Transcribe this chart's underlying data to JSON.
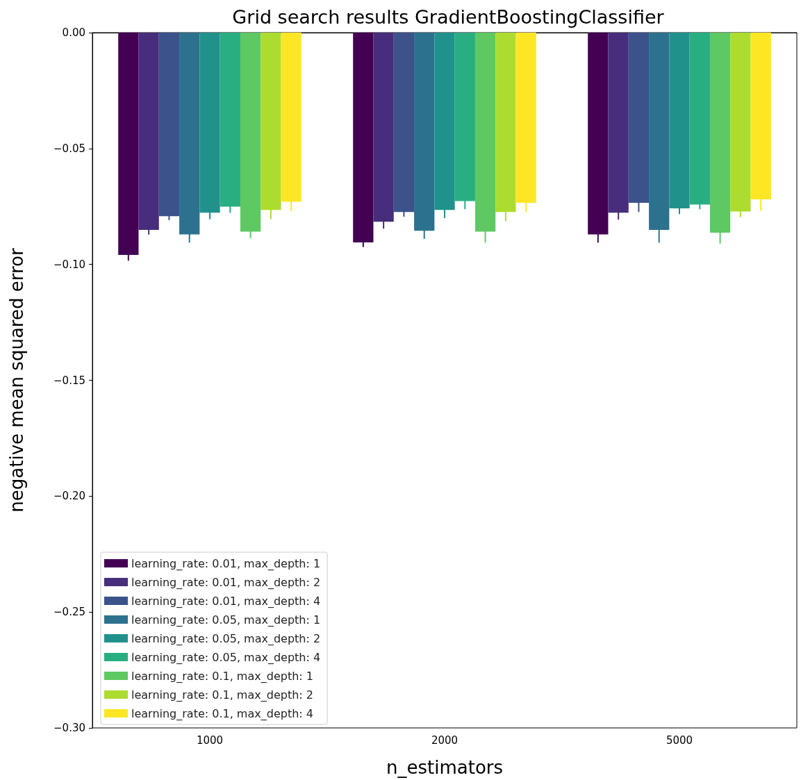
{
  "chart_data": {
    "type": "bar",
    "title": "Grid search results GradientBoostingClassifier",
    "xlabel": "n_estimators",
    "ylabel": "negative mean squared error",
    "categories": [
      "1000",
      "2000",
      "5000"
    ],
    "series": [
      {
        "name": "learning_rate: 0.01, max_depth: 1",
        "color": "#440154",
        "values": [
          -0.0959,
          -0.0905,
          -0.0871
        ],
        "errors": [
          0.0025,
          0.002,
          0.0035
        ]
      },
      {
        "name": "learning_rate: 0.01, max_depth: 2",
        "color": "#472d7b",
        "values": [
          -0.0851,
          -0.0816,
          -0.0777
        ],
        "errors": [
          0.002,
          0.003,
          0.003
        ]
      },
      {
        "name": "learning_rate: 0.01, max_depth: 4",
        "color": "#3b528b",
        "values": [
          -0.0792,
          -0.0774,
          -0.0734
        ],
        "errors": [
          0.0017,
          0.002,
          0.004
        ]
      },
      {
        "name": "learning_rate: 0.05, max_depth: 1",
        "color": "#2c728e",
        "values": [
          -0.0871,
          -0.0855,
          -0.0851
        ],
        "errors": [
          0.0035,
          0.0035,
          0.0055
        ]
      },
      {
        "name": "learning_rate: 0.05, max_depth: 2",
        "color": "#21918c",
        "values": [
          -0.0777,
          -0.0765,
          -0.0758
        ],
        "errors": [
          0.0028,
          0.0035,
          0.0025
        ]
      },
      {
        "name": "learning_rate: 0.05, max_depth: 4",
        "color": "#28ae80",
        "values": [
          -0.0751,
          -0.0727,
          -0.0742
        ],
        "errors": [
          0.0027,
          0.0035,
          0.002
        ]
      },
      {
        "name": "learning_rate: 0.1, max_depth: 1",
        "color": "#5ec962",
        "values": [
          -0.0859,
          -0.0859,
          -0.0863
        ],
        "errors": [
          0.0028,
          0.0047,
          0.0047
        ]
      },
      {
        "name": "learning_rate: 0.1, max_depth: 2",
        "color": "#addc30",
        "values": [
          -0.0765,
          -0.0774,
          -0.0772
        ],
        "errors": [
          0.004,
          0.004,
          0.0024
        ]
      },
      {
        "name": "learning_rate: 0.1, max_depth: 4",
        "color": "#fde725",
        "values": [
          -0.073,
          -0.0734,
          -0.0719
        ],
        "errors": [
          0.004,
          0.004,
          0.005
        ]
      }
    ],
    "ylim": [
      -0.3,
      0
    ],
    "yticks": [
      {
        "value": -0.3,
        "label": "−0.30"
      },
      {
        "value": -0.25,
        "label": "−0.25"
      },
      {
        "value": -0.2,
        "label": "−0.20"
      },
      {
        "value": -0.15,
        "label": "−0.15"
      },
      {
        "value": -0.1,
        "label": "−0.10"
      },
      {
        "value": -0.05,
        "label": "−0.05"
      },
      {
        "value": 0,
        "label": "0.00"
      }
    ],
    "grid": false,
    "legend": "bottom left"
  }
}
